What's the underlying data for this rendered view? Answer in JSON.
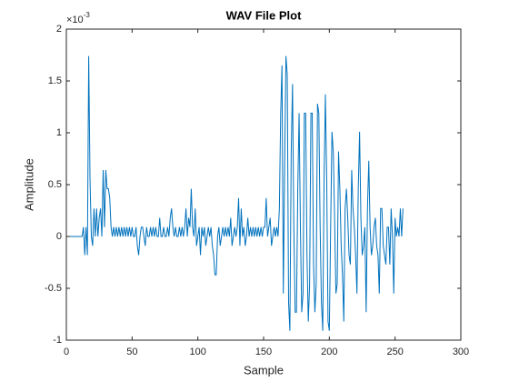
{
  "chart_data": {
    "type": "line",
    "title": "WAV File Plot",
    "x_label": "Sample",
    "y_label": "Amplitude",
    "y_multiplier": {
      "base": "×10",
      "exponent": "-3"
    },
    "color": "#0072bd",
    "xlim": [
      0,
      300
    ],
    "xticks": [
      0,
      50,
      100,
      150,
      200,
      250,
      300
    ],
    "ylim": [
      -1,
      2
    ],
    "yticks": [
      -1,
      -0.5,
      0,
      0.5,
      1,
      1.5,
      2
    ],
    "grid": false,
    "x": [
      1,
      2,
      3,
      4,
      5,
      6,
      7,
      8,
      9,
      10,
      11,
      12,
      13,
      14,
      15,
      16,
      17,
      18,
      19,
      20,
      21,
      22,
      23,
      24,
      25,
      26,
      27,
      28,
      29,
      30,
      31,
      32,
      33,
      34,
      35,
      36,
      37,
      38,
      39,
      40,
      41,
      42,
      43,
      44,
      45,
      46,
      47,
      48,
      49,
      50,
      51,
      52,
      53,
      54,
      55,
      56,
      57,
      58,
      59,
      60,
      61,
      62,
      63,
      64,
      65,
      66,
      67,
      68,
      69,
      70,
      71,
      72,
      73,
      74,
      75,
      76,
      77,
      78,
      79,
      80,
      81,
      82,
      83,
      84,
      85,
      86,
      87,
      88,
      89,
      90,
      91,
      92,
      93,
      94,
      95,
      96,
      97,
      98,
      99,
      100,
      101,
      102,
      103,
      104,
      105,
      106,
      107,
      108,
      109,
      110,
      111,
      112,
      113,
      114,
      115,
      116,
      117,
      118,
      119,
      120,
      121,
      122,
      123,
      124,
      125,
      126,
      127,
      128,
      129,
      130,
      131,
      132,
      133,
      134,
      135,
      136,
      137,
      138,
      139,
      140,
      141,
      142,
      143,
      144,
      145,
      146,
      147,
      148,
      149,
      150,
      151,
      152,
      153,
      154,
      155,
      156,
      157,
      158,
      159,
      160,
      161,
      162,
      163,
      164,
      165,
      166,
      167,
      168,
      169,
      170,
      171,
      172,
      173,
      174,
      175,
      176,
      177,
      178,
      179,
      180,
      181,
      182,
      183,
      184,
      185,
      186,
      187,
      188,
      189,
      190,
      191,
      192,
      193,
      194,
      195,
      196,
      197,
      198,
      199,
      200,
      201,
      202,
      203,
      204,
      205,
      206,
      207,
      208,
      209,
      210,
      211,
      212,
      213,
      214,
      215,
      216,
      217,
      218,
      219,
      220,
      221,
      222,
      223,
      224,
      225,
      226,
      227,
      228,
      229,
      230,
      231,
      232,
      233,
      234,
      235,
      236,
      237,
      238,
      239,
      240,
      241,
      242,
      243,
      244,
      245,
      246,
      247,
      248,
      249,
      250,
      251,
      252,
      253,
      254,
      255,
      256
    ],
    "values": [
      0,
      0,
      0,
      0,
      0,
      0,
      0,
      0,
      0,
      0,
      0,
      0,
      0.09,
      -0.18,
      0.09,
      -0.18,
      1.74,
      0.55,
      0,
      -0.09,
      0.27,
      0,
      0.27,
      0,
      0.18,
      0.27,
      0,
      0.64,
      0.09,
      0.64,
      0.46,
      0.46,
      0.37,
      0.09,
      0,
      0.09,
      0,
      0.09,
      0,
      0.09,
      0,
      0.09,
      0,
      0.09,
      0,
      0.09,
      0,
      0.09,
      0,
      0.09,
      0,
      0,
      0.09,
      -0.09,
      -0.18,
      0,
      0.09,
      0.09,
      0,
      -0.09,
      0.09,
      0,
      0,
      0.09,
      0,
      0.09,
      0,
      0.09,
      0,
      0,
      0.18,
      0,
      0,
      0.09,
      0,
      0,
      0.09,
      0,
      0.18,
      0.27,
      0.09,
      0,
      0.09,
      0,
      0,
      0.09,
      0,
      0.09,
      0,
      0.09,
      0.27,
      0,
      0.18,
      0.09,
      0.46,
      0.09,
      0,
      0.27,
      -0.09,
      0,
      0.09,
      -0.18,
      0.09,
      0,
      0.09,
      -0.09,
      0,
      0.09,
      0,
      0.09,
      -0.09,
      -0.18,
      -0.37,
      -0.37,
      0,
      0.09,
      -0.09,
      0,
      0.09,
      0,
      0.09,
      0,
      0.09,
      0,
      0.18,
      -0.09,
      0,
      0.09,
      0,
      0.09,
      0.37,
      -0.09,
      0.27,
      0,
      0.09,
      -0.09,
      0,
      0.18,
      0,
      0.09,
      0,
      0.09,
      0,
      0.09,
      0,
      0.09,
      0,
      0.09,
      0,
      0.09,
      0.09,
      0.37,
      0,
      0.09,
      0.18,
      -0.09,
      0,
      0.09,
      0,
      0.09,
      0,
      0.27,
      1.19,
      1.65,
      -0.55,
      0.64,
      1.74,
      1.56,
      -0.64,
      -0.91,
      0.82,
      1.47,
      0.09,
      -0.73,
      -0.73,
      0.46,
      1.19,
      0.09,
      -0.73,
      -0.55,
      1.19,
      1.19,
      -0.18,
      -0.82,
      -0.46,
      1.19,
      1.19,
      -0.27,
      -0.73,
      -0.46,
      1.28,
      1.19,
      0.09,
      -0.64,
      -0.91,
      0.55,
      1.37,
      0.55,
      -0.82,
      -0.91,
      0.09,
      1.01,
      0.82,
      0.18,
      -0.55,
      -0.46,
      0.82,
      0.46,
      -0.09,
      -0.37,
      -0.82,
      0.27,
      0.46,
      0.18,
      -0.18,
      -0.27,
      0.64,
      0.27,
      0.09,
      -0.18,
      -0.55,
      0.46,
      1.01,
      0.18,
      -0.18,
      -0.09,
      0.09,
      -0.73,
      0.27,
      0.73,
      0.09,
      -0.18,
      -0.09,
      0.09,
      0.18,
      -0.09,
      -0.18,
      -0.55,
      0.27,
      0.27,
      -0.09,
      -0.18,
      -0.27,
      0.09,
      0.09,
      -0.27,
      0.27,
      0,
      -0.55,
      0.18,
      0,
      0.09,
      0,
      0.27,
      0,
      0.27
    ]
  }
}
